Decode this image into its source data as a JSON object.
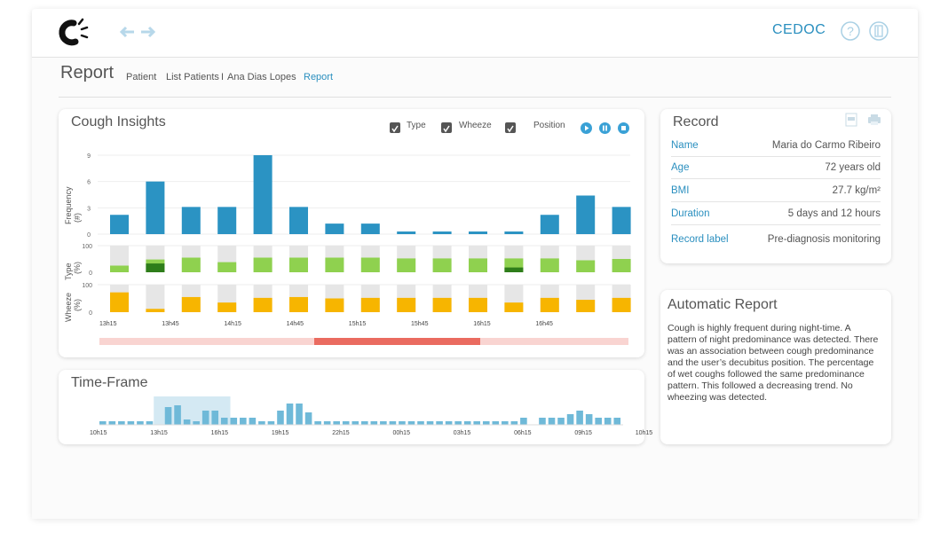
{
  "header": {
    "org": "CEDOC"
  },
  "page": {
    "title": "Report",
    "breadcrumbs": [
      {
        "label": "Patient"
      },
      {
        "label": "List Patients"
      },
      {
        "label": "I"
      },
      {
        "label": "Ana Dias Lopes"
      },
      {
        "label": "Report"
      }
    ]
  },
  "insights": {
    "title": "Cough Insights",
    "toggles": [
      {
        "label": "Type"
      },
      {
        "label": "Wheeze"
      },
      {
        "label": "Position"
      }
    ],
    "freq_ylabel": "Frequency",
    "freq_unit": "(#)",
    "type_ylabel": "Type",
    "wheeze_ylabel": "Wheeze",
    "pct_unit": "(%)"
  },
  "timeframe": {
    "title": "Time-Frame"
  },
  "record": {
    "title": "Record",
    "rows": [
      {
        "key": "Name",
        "value": "Maria do Carmo Ribeiro"
      },
      {
        "key": "Age",
        "value": "72 years old"
      },
      {
        "key": "BMI",
        "value": "27.7 kg/m²"
      },
      {
        "key": "Duration",
        "value": "5 days and 12 hours"
      },
      {
        "key": "Record label",
        "value": "Pre-diagnosis monitoring"
      }
    ]
  },
  "auto_report": {
    "title": "Automatic Report",
    "text": "Cough is highly frequent during night-time. A pattern of night predominance was detected. There was an association between cough predominance and the user’s decubitus position. The percentage of wet coughs followed the same predominance pattern. This followed a decreasing trend. No wheezing was detected."
  },
  "colors": {
    "freq": "#2b93c3",
    "type_light": "#8fd14f",
    "type_dark": "#2e7d1a",
    "wheeze": "#f7b500",
    "bg_bar": "#e6e6e6",
    "timeline_light": "#f9d4d1",
    "timeline_dark": "#ea6b60",
    "tf_bar": "#6fb9d8",
    "tf_sel": "#d4e9f3"
  },
  "chart_data": [
    {
      "type": {
        "ylim": [
          0,
          100
        ],
        "yticks": [
          "0",
          "100"
        ],
        "light": [
          25,
          48,
          55,
          38,
          55,
          55,
          55,
          55,
          52,
          52,
          52,
          52,
          52,
          45,
          50
        ],
        "dark": [
          0,
          33,
          0,
          0,
          0,
          0,
          0,
          0,
          0,
          0,
          0,
          18,
          0,
          0,
          0
        ]
      },
      "x_ticks": [
        "13h15",
        "13h45",
        "14h15",
        "14h45",
        "15h15",
        "15h45",
        "16h15",
        "16h45"
      ],
      "frequency": {
        "ylim": [
          0,
          9
        ],
        "yticks": [
          "0",
          "3",
          "6",
          "9"
        ],
        "values": [
          2.2,
          6,
          3.1,
          3.1,
          9,
          3.1,
          1.2,
          1.2,
          0.3,
          0.3,
          0.3,
          0.3,
          2.2,
          4.4,
          3.1
        ]
      },
      "wheeze": {
        "ylim": [
          0,
          100
        ],
        "yticks": [
          "0",
          "100"
        ],
        "values": [
          72,
          12,
          55,
          35,
          52,
          55,
          50,
          52,
          52,
          52,
          52,
          35,
          52,
          45,
          52
        ]
      }
    },
    {
      "type": "bar",
      "x_ticks": [
        "10h15",
        "13h15",
        "16h15",
        "19h15",
        "22h15",
        "00h15",
        "03h15",
        "06h15",
        "09h15",
        "10h15"
      ],
      "values": [
        1,
        1,
        1,
        1,
        1,
        1,
        0,
        5,
        5.5,
        1.5,
        1,
        4,
        4,
        2,
        2,
        2,
        2,
        1,
        1,
        4,
        6,
        6,
        3.5,
        1,
        1,
        1,
        1,
        1,
        1,
        1,
        1,
        1,
        1,
        1,
        1,
        1,
        1,
        1,
        1,
        1,
        1,
        1,
        1,
        1,
        1,
        2,
        0,
        2,
        2,
        2,
        3,
        4,
        3,
        2,
        2,
        2
      ],
      "selection": {
        "from": 6,
        "to": 13
      }
    }
  ]
}
